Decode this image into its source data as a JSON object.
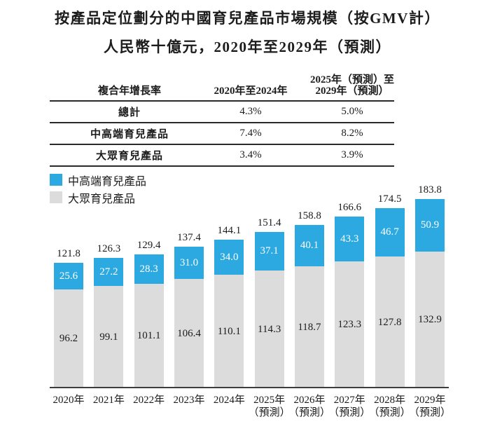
{
  "title": {
    "line1": "按產品定位劃分的中國育兒產品市場規模（按GMV計）",
    "line2": "人民幣十億元，2020年至2029年（預測）"
  },
  "table": {
    "header": {
      "col1": "複合年增長率",
      "col2": "2020年至2024年",
      "col3_line1": "2025年（預測）至",
      "col3_line2": "2029年（預測）"
    },
    "rows": [
      {
        "label": "總計",
        "cagr_2020_2024": "4.3%",
        "cagr_2025_2029": "5.0%"
      },
      {
        "label": "中高端育兒產品",
        "cagr_2020_2024": "7.4%",
        "cagr_2025_2029": "8.2%"
      },
      {
        "label": "大眾育兒產品",
        "cagr_2020_2024": "3.4%",
        "cagr_2025_2029": "3.9%"
      }
    ]
  },
  "legend": [
    {
      "label": "中高端育兒產品",
      "color": "#2CA9E1"
    },
    {
      "label": "大眾育兒產品",
      "color": "#DCDCDC"
    }
  ],
  "colors": {
    "premium_blue": "#2CA9E1",
    "mass_gray": "#DCDCDC",
    "axis": "#3d3d3d",
    "text": "#1c1c1c"
  },
  "chart_data": {
    "type": "bar",
    "stacked": true,
    "title": "按產品定位劃分的中國育兒產品市場規模（按GMV計）",
    "subtitle": "人民幣十億元，2020年至2029年（預測）",
    "unit": "人民幣十億元",
    "legend_position": "top-left",
    "grid": false,
    "y_axis_visible": false,
    "ylim": [
      0,
      190
    ],
    "categories": [
      {
        "year": "2020年",
        "note": ""
      },
      {
        "year": "2021年",
        "note": ""
      },
      {
        "year": "2022年",
        "note": ""
      },
      {
        "year": "2023年",
        "note": ""
      },
      {
        "year": "2024年",
        "note": ""
      },
      {
        "year": "2025年",
        "note": "（預測）"
      },
      {
        "year": "2026年",
        "note": "（預測）"
      },
      {
        "year": "2027年",
        "note": "（預測）"
      },
      {
        "year": "2028年",
        "note": "（預測）"
      },
      {
        "year": "2029年",
        "note": "（預測）"
      }
    ],
    "series": [
      {
        "name": "中高端育兒產品",
        "color": "#2CA9E1",
        "values": [
          25.6,
          27.2,
          28.3,
          31.0,
          34.0,
          37.1,
          40.1,
          43.3,
          46.7,
          50.9
        ]
      },
      {
        "name": "大眾育兒產品",
        "color": "#DCDCDC",
        "values": [
          96.2,
          99.1,
          101.1,
          106.4,
          110.1,
          114.3,
          118.7,
          123.3,
          127.8,
          132.9
        ]
      }
    ],
    "totals": [
      121.8,
      126.3,
      129.4,
      137.4,
      144.1,
      151.4,
      158.8,
      166.6,
      174.5,
      183.8
    ]
  }
}
